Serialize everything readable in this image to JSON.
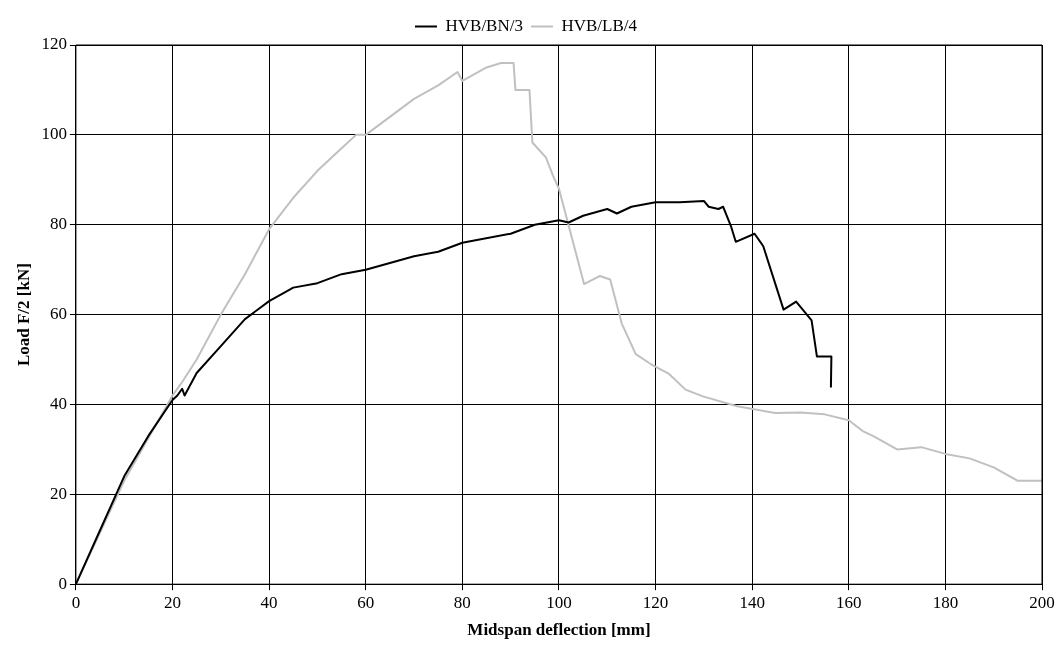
{
  "chart_data": {
    "type": "line",
    "xlabel": "Midspan deflection [mm]",
    "ylabel": "Load F/2 [kN]",
    "xlim": [
      0,
      200
    ],
    "xticks": [
      0,
      20,
      40,
      60,
      80,
      100,
      120,
      140,
      160,
      180,
      200
    ],
    "ylim": [
      0,
      120
    ],
    "yticks": [
      0,
      20,
      40,
      60,
      80,
      100,
      120
    ],
    "grid": true,
    "legend": "top",
    "marker": "none",
    "line_style": "solid",
    "series": [
      {
        "name": "HVB/BN/3",
        "color": "#000000",
        "x": [
          0,
          5,
          10,
          15,
          20,
          21,
          22,
          22.5,
          25,
          30,
          35,
          40,
          45,
          50,
          55,
          60,
          70,
          75,
          80,
          90,
          95,
          100,
          102,
          105,
          110,
          112,
          115,
          120,
          125,
          130,
          131,
          133,
          134,
          135.6,
          136.6,
          140.5,
          142.3,
          146.5,
          149.1,
          152.3,
          153.4,
          156.4,
          156.3
        ],
        "values": [
          0,
          12,
          24,
          33,
          41,
          42,
          43.5,
          42,
          47,
          53,
          59,
          63,
          66,
          67,
          69,
          70,
          73,
          74,
          76,
          78,
          80,
          81,
          80.5,
          82,
          83.5,
          82.5,
          84,
          85,
          85,
          85.3,
          84,
          83.5,
          84,
          79.7,
          76.2,
          78,
          75.2,
          61.1,
          62.9,
          58.7,
          50.7,
          50.7,
          43.8
        ]
      },
      {
        "name": "HVB/LB/4",
        "color": "#c0c0c0",
        "x": [
          0,
          10,
          20,
          22,
          25,
          30,
          35,
          40,
          45,
          50,
          55,
          58,
          60,
          65,
          70,
          75,
          79,
          80,
          85,
          88,
          90.6,
          91,
          93.9,
          94.5,
          97.3,
          98.8,
          100,
          105.2,
          108.5,
          110.6,
          113,
          115.9,
          119,
          122.8,
          126.2,
          129.8,
          136.9,
          144.8,
          150,
          155,
          160,
          163,
          165,
          170,
          175,
          180,
          185,
          190,
          195,
          200
        ],
        "values": [
          0,
          23,
          42,
          45,
          50,
          60,
          69,
          79,
          86,
          92,
          97,
          100,
          100,
          104,
          108,
          111,
          114,
          112,
          115,
          116,
          116,
          110,
          110,
          98.3,
          95,
          90.8,
          88,
          66.8,
          68.6,
          67.8,
          58,
          51.2,
          49,
          46.8,
          43.3,
          41.8,
          39.6,
          38.1,
          38.2,
          37.8,
          36.5,
          34,
          33,
          30,
          30.5,
          29,
          28,
          26,
          23,
          23
        ]
      }
    ]
  }
}
